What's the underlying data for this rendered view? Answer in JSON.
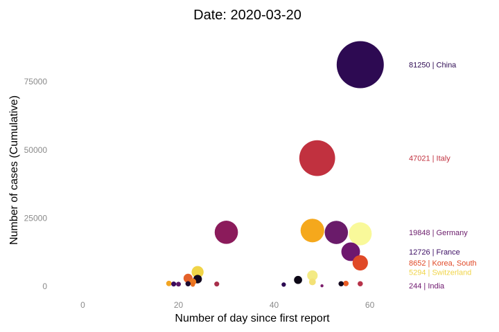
{
  "chart_data": {
    "type": "scatter",
    "title": "Date: 2020-03-20",
    "xlabel": "Number of day since first report",
    "ylabel": "Number of cases (Cumulative)",
    "xlim": [
      -5,
      66
    ],
    "ylim": [
      -3500,
      91000
    ],
    "xticks": [
      0,
      20,
      40,
      60
    ],
    "yticks": [
      0,
      25000,
      50000,
      75000
    ],
    "grid": false,
    "legend": "none",
    "points": [
      {
        "x": 58,
        "y": 81250,
        "size": 81250,
        "color": "#2d0a52"
      },
      {
        "x": 49,
        "y": 47021,
        "size": 47021,
        "color": "#c1313f"
      },
      {
        "x": 30,
        "y": 19848,
        "size": 19848,
        "color": "#8b1b5b"
      },
      {
        "x": 48,
        "y": 20500,
        "size": 20500,
        "color": "#f5a81c"
      },
      {
        "x": 53,
        "y": 19800,
        "size": 19800,
        "color": "#6a1b6a"
      },
      {
        "x": 58,
        "y": 19300,
        "size": 19300,
        "color": "#f9f99a"
      },
      {
        "x": 56,
        "y": 12726,
        "size": 12726,
        "color": "#6e176e"
      },
      {
        "x": 58,
        "y": 8652,
        "size": 8652,
        "color": "#e04927"
      },
      {
        "x": 24,
        "y": 5294,
        "size": 5294,
        "color": "#f0d448"
      },
      {
        "x": 48,
        "y": 4000,
        "size": 4000,
        "color": "#f3ea84"
      },
      {
        "x": 22,
        "y": 3000,
        "size": 3000,
        "color": "#e4612a"
      },
      {
        "x": 24,
        "y": 2700,
        "size": 2700,
        "color": "#12081e"
      },
      {
        "x": 45,
        "y": 2400,
        "size": 2400,
        "color": "#0c0716"
      },
      {
        "x": 23,
        "y": 1700,
        "size": 1700,
        "color": "#ec7a21"
      },
      {
        "x": 48,
        "y": 1700,
        "size": 1700,
        "color": "#f3e176"
      },
      {
        "x": 18,
        "y": 1100,
        "size": 1100,
        "color": "#f2a523"
      },
      {
        "x": 19,
        "y": 900,
        "size": 900,
        "color": "#3a0a5b"
      },
      {
        "x": 20,
        "y": 850,
        "size": 850,
        "color": "#5a1565"
      },
      {
        "x": 22,
        "y": 1000,
        "size": 1000,
        "color": "#1c0b31"
      },
      {
        "x": 23,
        "y": 700,
        "size": 700,
        "color": "#e86e1f"
      },
      {
        "x": 28,
        "y": 900,
        "size": 900,
        "color": "#a82f4b"
      },
      {
        "x": 42,
        "y": 700,
        "size": 700,
        "color": "#2c0a52"
      },
      {
        "x": 54,
        "y": 1000,
        "size": 1000,
        "color": "#14081f"
      },
      {
        "x": 55,
        "y": 1100,
        "size": 1100,
        "color": "#ea5d26"
      },
      {
        "x": 58,
        "y": 1000,
        "size": 1000,
        "color": "#b7334a"
      },
      {
        "x": 50,
        "y": 244,
        "size": 244,
        "color": "#7b1d6b"
      }
    ],
    "annotations": [
      {
        "text": "81250 | China",
        "y": 81250,
        "color": "#2d0a52"
      },
      {
        "text": "47021 | Italy",
        "y": 47021,
        "color": "#c1313f"
      },
      {
        "text": "19848 | Germany",
        "y": 19848,
        "color": "#6a1b6a"
      },
      {
        "text": "12726 | France",
        "y": 12726,
        "color": "#3b0d63"
      },
      {
        "text": "8652 | Korea, South",
        "y": 8652,
        "color": "#e04927"
      },
      {
        "text": "5294 | Switzerland",
        "y": 5294,
        "color": "#f0d448"
      },
      {
        "text": "244 | India",
        "y": 244,
        "color": "#6e176e"
      }
    ]
  }
}
